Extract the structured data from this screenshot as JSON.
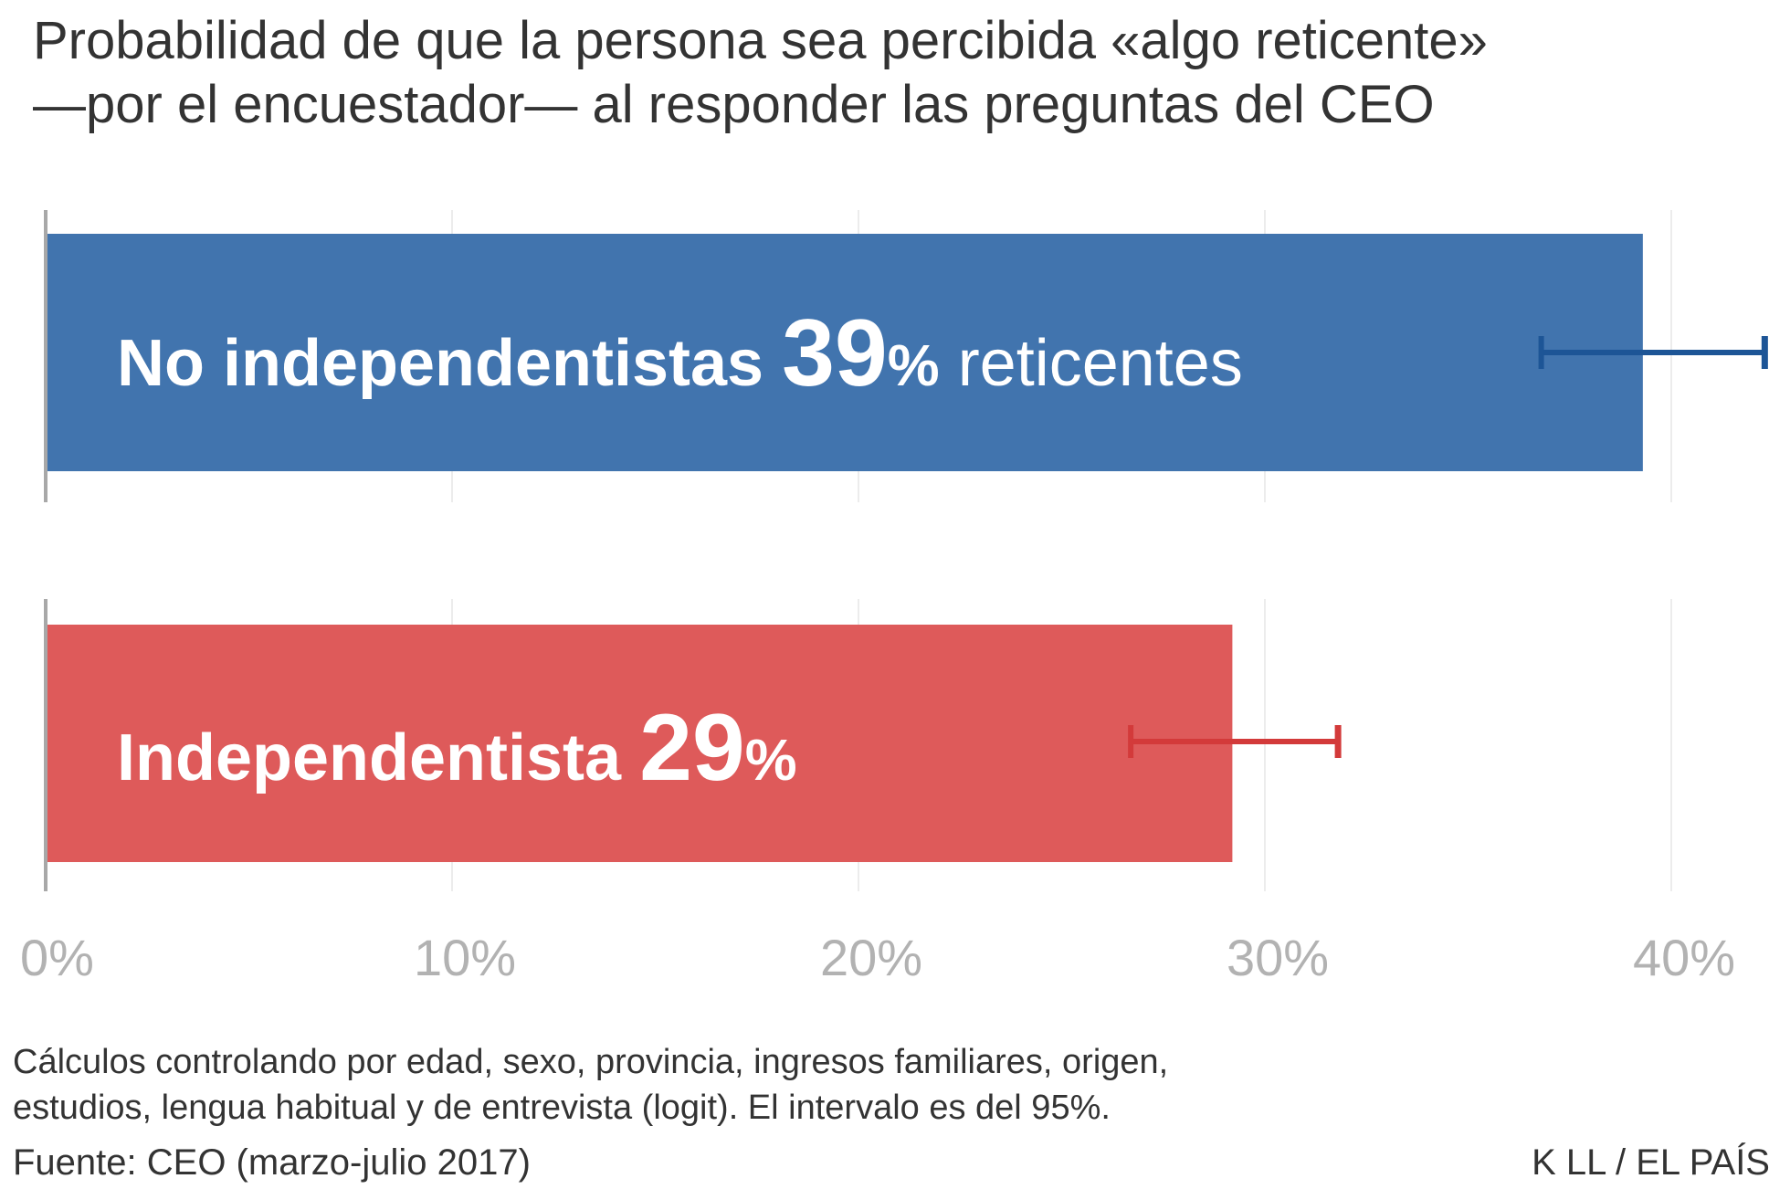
{
  "title_lines": [
    "Probabilidad de que la persona sea percibida «algo reticente»",
    "—por el encuestador— al responder las preguntas del CEO"
  ],
  "chart_data": {
    "type": "bar",
    "orientation": "horizontal",
    "categories": [
      "No independentistas",
      "Independentista"
    ],
    "values": [
      39.3,
      29.2
    ],
    "error_low": [
      36.8,
      26.7
    ],
    "error_high": [
      42.3,
      31.8
    ],
    "value_labels": [
      "39",
      "29"
    ],
    "unit_label": "%",
    "suffix_labels": [
      "reticentes",
      ""
    ],
    "colors": [
      "#4174ae",
      "#de5a5a"
    ],
    "error_colors": [
      "#1d5596",
      "#d33a3a"
    ],
    "xlim": [
      0,
      42
    ],
    "ticks": [
      0,
      10,
      20,
      30,
      40
    ],
    "tick_labels": [
      "0%",
      "10%",
      "20%",
      "30%",
      "40%"
    ],
    "grid": true,
    "title": "Probabilidad de que la persona sea percibida «algo reticente» —por el encuestador— al responder las preguntas del CEO",
    "xlabel": "",
    "ylabel": ""
  },
  "notes_lines": [
    "Cálculos controlando por edad, sexo, provincia, ingresos familiares, origen,",
    "estudios, lengua habitual y de entrevista (logit). El intervalo es del 95%."
  ],
  "source": "Fuente: CEO (marzo-julio 2017)",
  "credit": "K LL / EL PAÍS"
}
